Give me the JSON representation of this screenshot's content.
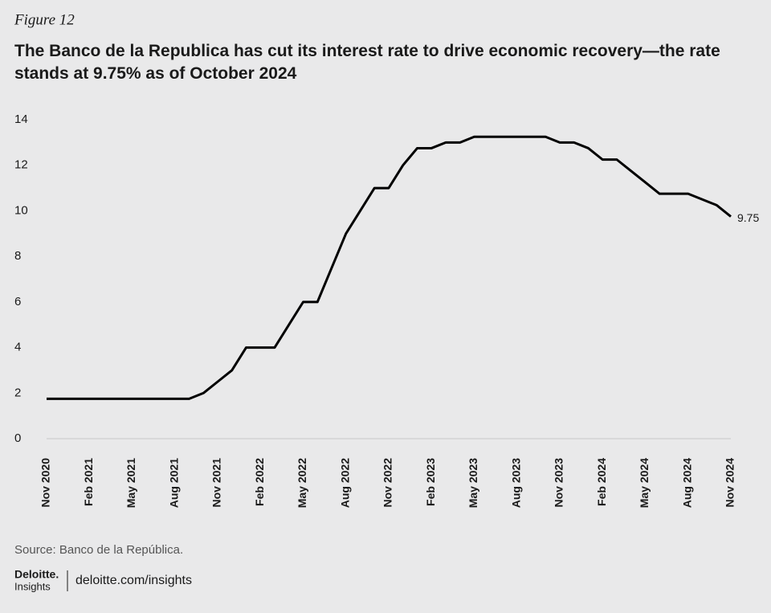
{
  "figure_label": "Figure 12",
  "chart_data": {
    "type": "line",
    "title": "The Banco de la Republica has cut its interest rate to drive economic recovery—the rate stands at 9.75% as of October 2024",
    "categories": [
      "Nov 2020",
      null,
      null,
      "Feb 2021",
      null,
      null,
      "May 2021",
      null,
      null,
      "Aug 2021",
      null,
      null,
      "Nov 2021",
      null,
      null,
      "Feb 2022",
      null,
      null,
      "May 2022",
      null,
      null,
      "Aug 2022",
      null,
      null,
      "Nov 2022",
      null,
      null,
      "Feb 2023",
      null,
      null,
      "May 2023",
      null,
      null,
      "Aug 2023",
      null,
      null,
      "Nov 2023",
      null,
      null,
      "Feb 2024",
      null,
      null,
      "May 2024",
      null,
      null,
      "Aug 2024",
      null,
      null,
      "Nov 2024"
    ],
    "values": [
      1.75,
      1.75,
      1.75,
      1.75,
      1.75,
      1.75,
      1.75,
      1.75,
      1.75,
      1.75,
      1.75,
      2.0,
      2.5,
      3.0,
      4.0,
      4.0,
      4.0,
      5.0,
      6.0,
      6.0,
      7.5,
      9.0,
      10.0,
      11.0,
      11.0,
      12.0,
      12.75,
      12.75,
      13.0,
      13.0,
      13.25,
      13.25,
      13.25,
      13.25,
      13.25,
      13.25,
      13.0,
      13.0,
      12.75,
      12.25,
      12.25,
      11.75,
      11.25,
      10.75,
      10.75,
      10.75,
      10.5,
      10.25,
      9.75
    ],
    "color": "#000000",
    "ylim": [
      0,
      14
    ],
    "yticks": [
      0,
      2,
      4,
      6,
      8,
      10,
      12,
      14
    ],
    "grid": false
  },
  "source": "Source: Banco de la República.",
  "footer": {
    "brand": "Deloitte.",
    "brand_sub": "Insights",
    "url": "deloitte.com/insights"
  }
}
